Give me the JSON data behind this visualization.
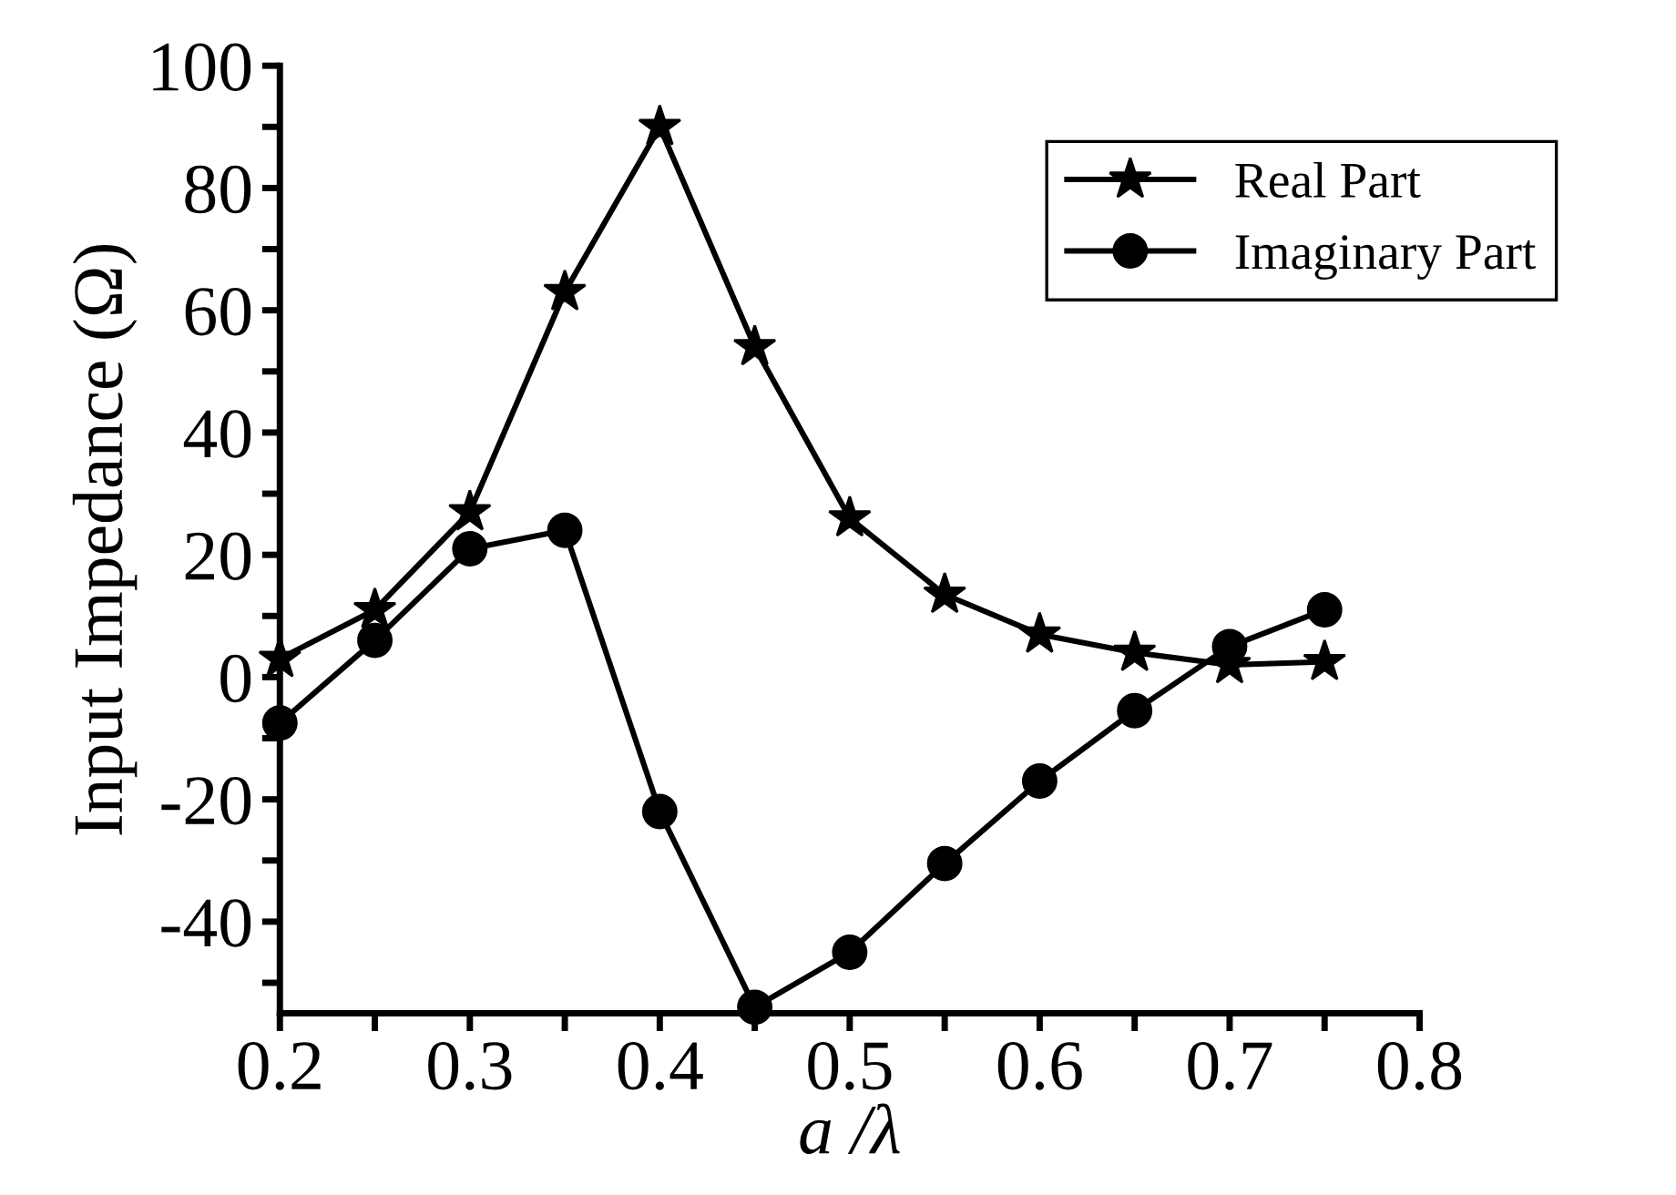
{
  "chart_data": {
    "type": "line",
    "xlabel": "a /λ",
    "ylabel": "Input Impedance (Ω)",
    "x": [
      0.2,
      0.25,
      0.3,
      0.35,
      0.4,
      0.45,
      0.5,
      0.55,
      0.6,
      0.65,
      0.7,
      0.75
    ],
    "series": [
      {
        "name": "Real Part",
        "color": "#000000",
        "marker": "star",
        "values": [
          3,
          11,
          27,
          63,
          90,
          54,
          26,
          13.5,
          7,
          4,
          2,
          2.5
        ]
      },
      {
        "name": "Imaginary Part",
        "color": "#000000",
        "marker": "circle",
        "values": [
          -7.5,
          6,
          21,
          24,
          -22,
          -54,
          -45,
          -30.5,
          -17,
          -5.5,
          5,
          11
        ]
      }
    ],
    "xlim": [
      0.2,
      0.8
    ],
    "ylim": [
      -55,
      100
    ],
    "xticks": [
      0.2,
      {
        "value": 0.25,
        "label": null
      },
      0.3,
      {
        "value": 0.35,
        "label": null
      },
      0.4,
      {
        "value": 0.45,
        "label": null
      },
      0.5,
      {
        "value": 0.55,
        "label": null
      },
      0.6,
      {
        "value": 0.65,
        "label": null
      },
      0.7,
      {
        "value": 0.75,
        "label": null
      },
      0.8
    ],
    "yticks": [
      {
        "value": -50,
        "label": null
      },
      -40,
      {
        "value": -30,
        "label": null
      },
      -20,
      {
        "value": -10,
        "label": null
      },
      0,
      {
        "value": 10,
        "label": null
      },
      20,
      {
        "value": 30,
        "label": null
      },
      40,
      {
        "value": 50,
        "label": null
      },
      60,
      {
        "value": 70,
        "label": null
      },
      80,
      {
        "value": 90,
        "label": null
      },
      100
    ],
    "grid": false,
    "legend": "top right",
    "line_style": "solid"
  }
}
